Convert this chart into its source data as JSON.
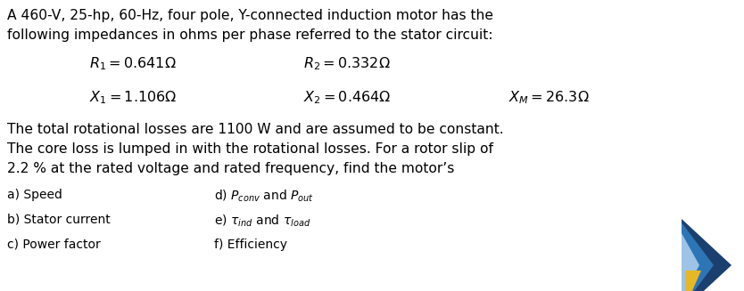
{
  "title_line1": "A 460-V, 25-hp, 60-Hz, four pole, Y-connected induction motor has the",
  "title_line2": "following impedances in ohms per phase referred to the stator circuit:",
  "R1_label": "$R_1 = 0.641\\Omega$",
  "R2_label": "$R_2 = 0.332\\Omega$",
  "X1_label": "$X_1 = 1.106\\Omega$",
  "X2_label": "$X_2 = 0.464\\Omega$",
  "XM_label": "$X_M = 26.3\\Omega$",
  "para1_line1": "The total rotational losses are 1100 W and are assumed to be constant.",
  "para1_line2": "The core loss is lumped in with the rotational losses. For a rotor slip of",
  "para1_line3": "2.2 % at the rated voltage and rated frequency, find the motor’s",
  "items_left": [
    "a) Speed",
    "b) Stator current",
    "c) Power factor"
  ],
  "items_right": [
    "d) $P_{conv}$ and $P_{out}$",
    "e) $\\tau_{ind}$ and $\\tau_{load}$",
    "f) Efficiency"
  ],
  "bg_color": "#ffffff",
  "text_color": "#000000",
  "logo": {
    "dark_blue": "#1b3f6e",
    "mid_blue": "#2e75b6",
    "light_blue": "#9dc3e6",
    "yellow": "#e8b824"
  }
}
